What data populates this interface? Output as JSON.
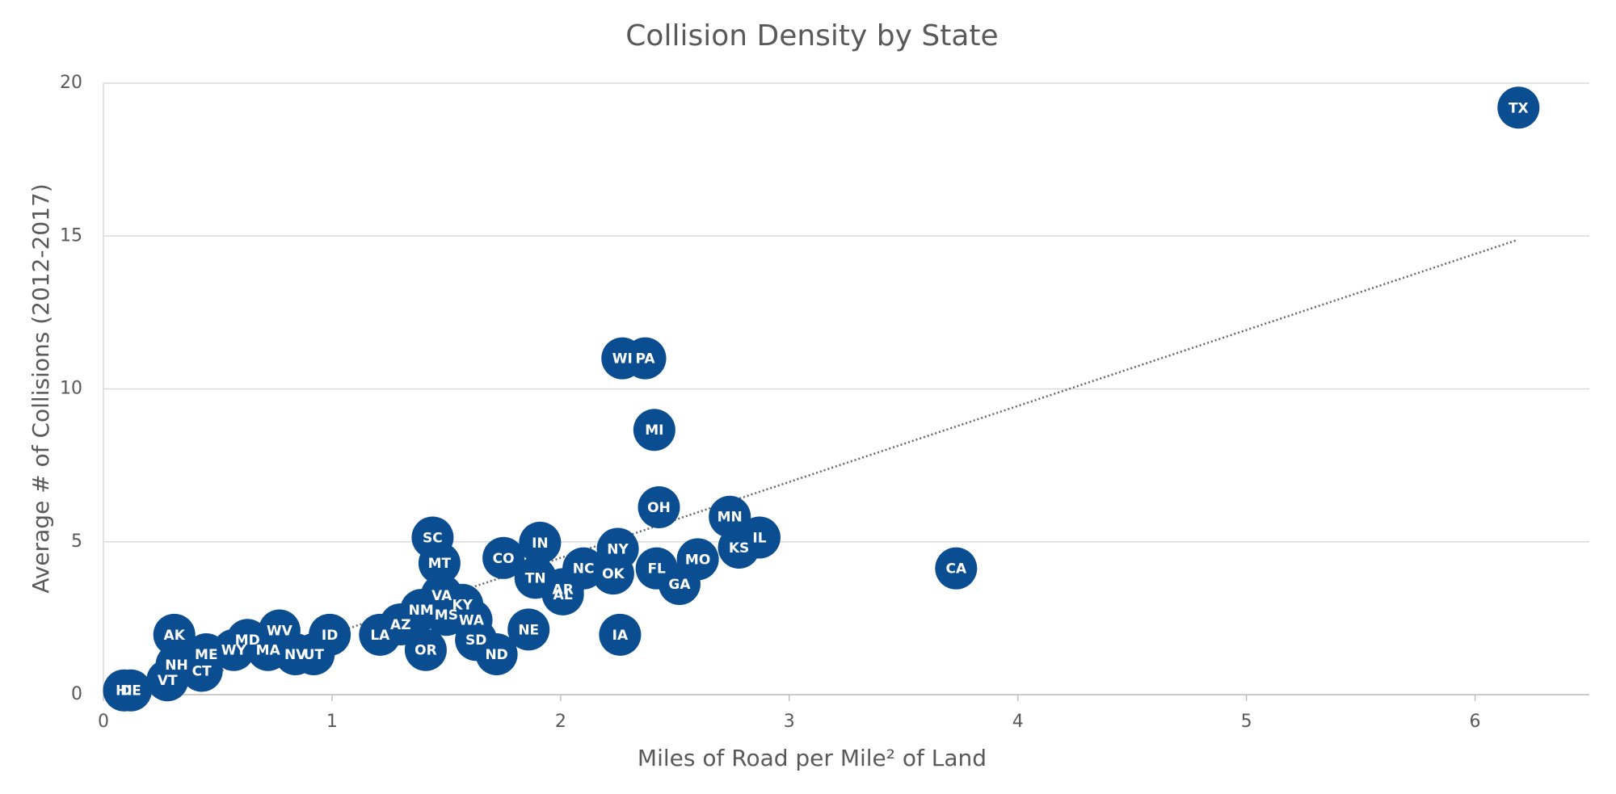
{
  "chart_data": {
    "type": "scatter",
    "title": "Collision Density by State",
    "xlabel": "Miles of Road per Mile² of Land",
    "ylabel": "Average # of Collisions (2012-2017)",
    "xlim": [
      0,
      6.5
    ],
    "ylim": [
      0,
      20
    ],
    "xticks": [
      0,
      1,
      2,
      3,
      4,
      5,
      6
    ],
    "yticks": [
      0,
      5,
      10,
      15,
      20
    ],
    "grid": true,
    "series": [
      {
        "color": "#0b4d91",
        "labels": [
          "TX",
          "WI",
          "PA",
          "MI",
          "OH",
          "MN",
          "IL",
          "KS",
          "MO",
          "GA",
          "FL",
          "OK",
          "NY",
          "NC",
          "IA",
          "AR",
          "AL",
          "TN",
          "IN",
          "CO",
          "NE",
          "ND",
          "SD",
          "WA",
          "KY",
          "MS",
          "VA",
          "NM",
          "SC",
          "MT",
          "OR",
          "AZ",
          "LA",
          "ID",
          "UT",
          "NV",
          "WV",
          "MA",
          "MD",
          "WY",
          "ME",
          "CT",
          "NH",
          "AK",
          "VT",
          "HI",
          "DE",
          "CA"
        ],
        "x": [
          6.19,
          2.27,
          2.37,
          2.41,
          2.43,
          2.74,
          2.87,
          2.78,
          2.6,
          2.52,
          2.42,
          2.23,
          2.25,
          2.1,
          2.26,
          2.01,
          2.01,
          1.89,
          1.91,
          1.75,
          1.86,
          1.72,
          1.63,
          1.61,
          1.57,
          1.5,
          1.48,
          1.39,
          1.44,
          1.47,
          1.41,
          1.3,
          1.21,
          0.99,
          0.92,
          0.84,
          0.77,
          0.72,
          0.63,
          0.57,
          0.45,
          0.43,
          0.32,
          0.31,
          0.28,
          0.09,
          0.12,
          3.73
        ],
        "values": [
          19.2,
          11.0,
          11.0,
          8.66,
          6.13,
          5.82,
          5.14,
          4.81,
          4.43,
          3.62,
          4.13,
          3.96,
          4.77,
          4.13,
          1.96,
          3.45,
          3.28,
          3.82,
          4.97,
          4.47,
          2.13,
          1.32,
          1.79,
          2.44,
          2.94,
          2.61,
          3.25,
          2.77,
          5.14,
          4.3,
          1.46,
          2.3,
          1.96,
          1.96,
          1.32,
          1.32,
          2.1,
          1.46,
          1.79,
          1.46,
          1.32,
          0.78,
          0.98,
          1.96,
          0.47,
          0.14,
          0.14,
          4.13
        ]
      }
    ],
    "trendline": {
      "color": "#666666",
      "x": [
        0.2,
        6.18
      ],
      "values": [
        0,
        14.86
      ]
    }
  }
}
